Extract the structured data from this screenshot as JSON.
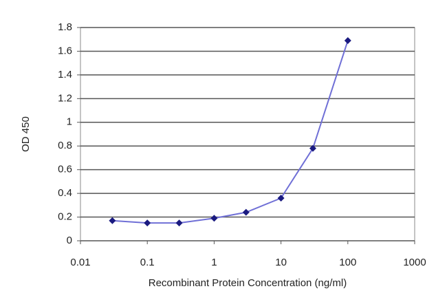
{
  "chart_data": {
    "type": "line",
    "x_label": "Recombinant Protein Concentration (ng/ml)",
    "y_label": "OD 450",
    "x": [
      0.03,
      0.1,
      0.3,
      1,
      3,
      10,
      30,
      100
    ],
    "series": [
      {
        "name": "OD 450",
        "color": "#6f6fd6",
        "marker_color": "#1a1a80",
        "values": [
          0.17,
          0.15,
          0.15,
          0.19,
          0.24,
          0.36,
          0.78,
          1.69
        ]
      }
    ],
    "x_log": true,
    "xlim": [
      0.01,
      1000
    ],
    "xticks": [
      0.01,
      0.1,
      1,
      10,
      100,
      1000
    ],
    "ylim": [
      0,
      1.8
    ],
    "yticks": [
      0,
      0.2,
      0.4,
      0.6,
      0.8,
      1,
      1.2,
      1.4,
      1.6,
      1.8
    ],
    "grid": true
  }
}
